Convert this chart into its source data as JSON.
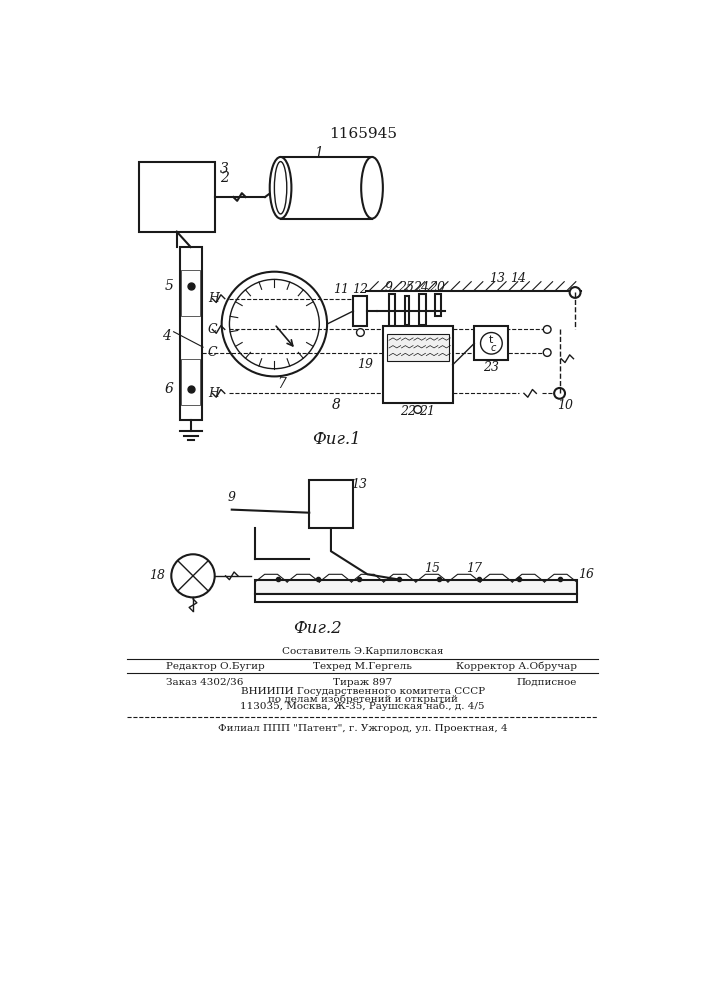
{
  "title": "1165945",
  "fig1_label": "Фиг.1",
  "fig2_label": "Фиг.2",
  "bg_color": "#ffffff",
  "line_color": "#1a1a1a"
}
